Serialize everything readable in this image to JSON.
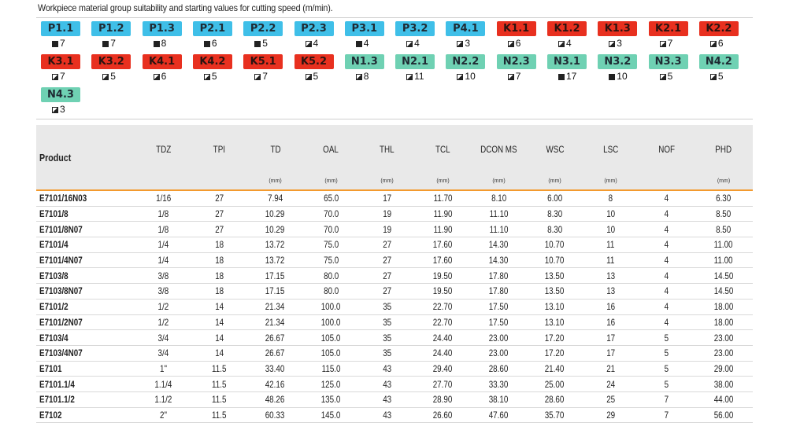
{
  "title": "Workpiece material group suitability and starting values for cutting speed (m/min).",
  "colors": {
    "blue": "#3fbfe8",
    "red": "#e8301f",
    "green": "#6fd1b3",
    "accent_line": "#f39a2e",
    "header_bg": "#e9e9e9"
  },
  "materials": [
    [
      {
        "code": "P1.1",
        "color": "blue",
        "icon": "full",
        "value": "7"
      },
      {
        "code": "P1.2",
        "color": "blue",
        "icon": "full",
        "value": "7"
      },
      {
        "code": "P1.3",
        "color": "blue",
        "icon": "full",
        "value": "8"
      },
      {
        "code": "P2.1",
        "color": "blue",
        "icon": "full",
        "value": "6"
      },
      {
        "code": "P2.2",
        "color": "blue",
        "icon": "full",
        "value": "5"
      },
      {
        "code": "P2.3",
        "color": "blue",
        "icon": "half",
        "value": "4"
      },
      {
        "code": "P3.1",
        "color": "blue",
        "icon": "full",
        "value": "4"
      },
      {
        "code": "P3.2",
        "color": "blue",
        "icon": "half",
        "value": "4"
      },
      {
        "code": "P4.1",
        "color": "blue",
        "icon": "half",
        "value": "3"
      },
      {
        "code": "K1.1",
        "color": "red",
        "icon": "half",
        "value": "6"
      },
      {
        "code": "K1.2",
        "color": "red",
        "icon": "half",
        "value": "4"
      },
      {
        "code": "K1.3",
        "color": "red",
        "icon": "half",
        "value": "3"
      },
      {
        "code": "K2.1",
        "color": "red",
        "icon": "half",
        "value": "7"
      },
      {
        "code": "K2.2",
        "color": "red",
        "icon": "half",
        "value": "6"
      }
    ],
    [
      {
        "code": "K3.1",
        "color": "red",
        "icon": "half",
        "value": "7"
      },
      {
        "code": "K3.2",
        "color": "red",
        "icon": "half",
        "value": "5"
      },
      {
        "code": "K4.1",
        "color": "red",
        "icon": "half",
        "value": "6"
      },
      {
        "code": "K4.2",
        "color": "red",
        "icon": "half",
        "value": "5"
      },
      {
        "code": "K5.1",
        "color": "red",
        "icon": "half",
        "value": "7"
      },
      {
        "code": "K5.2",
        "color": "red",
        "icon": "half",
        "value": "5"
      },
      {
        "code": "N1.3",
        "color": "green",
        "icon": "half",
        "value": "8"
      },
      {
        "code": "N2.1",
        "color": "green",
        "icon": "half",
        "value": "11"
      },
      {
        "code": "N2.2",
        "color": "green",
        "icon": "half",
        "value": "10"
      },
      {
        "code": "N2.3",
        "color": "green",
        "icon": "half",
        "value": "7"
      },
      {
        "code": "N3.1",
        "color": "green",
        "icon": "full",
        "value": "17"
      },
      {
        "code": "N3.2",
        "color": "green",
        "icon": "full",
        "value": "10"
      },
      {
        "code": "N3.3",
        "color": "green",
        "icon": "half",
        "value": "5"
      },
      {
        "code": "N4.2",
        "color": "green",
        "icon": "half",
        "value": "5"
      }
    ],
    [
      {
        "code": "N4.3",
        "color": "green",
        "icon": "half",
        "value": "3"
      }
    ]
  ],
  "table": {
    "columns": [
      {
        "label": "Product",
        "unit": ""
      },
      {
        "label": "TDZ",
        "unit": ""
      },
      {
        "label": "TPI",
        "unit": ""
      },
      {
        "label": "TD",
        "unit": "(mm)"
      },
      {
        "label": "OAL",
        "unit": "(mm)"
      },
      {
        "label": "THL",
        "unit": "(mm)"
      },
      {
        "label": "TCL",
        "unit": "(mm)"
      },
      {
        "label": "DCON MS",
        "unit": "(mm)"
      },
      {
        "label": "WSC",
        "unit": "(mm)"
      },
      {
        "label": "LSC",
        "unit": "(mm)"
      },
      {
        "label": "NOF",
        "unit": ""
      },
      {
        "label": "PHD",
        "unit": "(mm)"
      }
    ],
    "rows": [
      [
        "E7101/16N03",
        "1/16",
        "27",
        "7.94",
        "65.0",
        "17",
        "11.70",
        "8.10",
        "6.00",
        "8",
        "4",
        "6.30"
      ],
      [
        "E7101/8",
        "1/8",
        "27",
        "10.29",
        "70.0",
        "19",
        "11.90",
        "11.10",
        "8.30",
        "10",
        "4",
        "8.50"
      ],
      [
        "E7101/8N07",
        "1/8",
        "27",
        "10.29",
        "70.0",
        "19",
        "11.90",
        "11.10",
        "8.30",
        "10",
        "4",
        "8.50"
      ],
      [
        "E7101/4",
        "1/4",
        "18",
        "13.72",
        "75.0",
        "27",
        "17.60",
        "14.30",
        "10.70",
        "11",
        "4",
        "11.00"
      ],
      [
        "E7101/4N07",
        "1/4",
        "18",
        "13.72",
        "75.0",
        "27",
        "17.60",
        "14.30",
        "10.70",
        "11",
        "4",
        "11.00"
      ],
      [
        "E7103/8",
        "3/8",
        "18",
        "17.15",
        "80.0",
        "27",
        "19.50",
        "17.80",
        "13.50",
        "13",
        "4",
        "14.50"
      ],
      [
        "E7103/8N07",
        "3/8",
        "18",
        "17.15",
        "80.0",
        "27",
        "19.50",
        "17.80",
        "13.50",
        "13",
        "4",
        "14.50"
      ],
      [
        "E7101/2",
        "1/2",
        "14",
        "21.34",
        "100.0",
        "35",
        "22.70",
        "17.50",
        "13.10",
        "16",
        "4",
        "18.00"
      ],
      [
        "E7101/2N07",
        "1/2",
        "14",
        "21.34",
        "100.0",
        "35",
        "22.70",
        "17.50",
        "13.10",
        "16",
        "4",
        "18.00"
      ],
      [
        "E7103/4",
        "3/4",
        "14",
        "26.67",
        "105.0",
        "35",
        "24.40",
        "23.00",
        "17.20",
        "17",
        "5",
        "23.00"
      ],
      [
        "E7103/4N07",
        "3/4",
        "14",
        "26.67",
        "105.0",
        "35",
        "24.40",
        "23.00",
        "17.20",
        "17",
        "5",
        "23.00"
      ],
      [
        "E7101",
        "1\"",
        "11.5",
        "33.40",
        "115.0",
        "43",
        "29.40",
        "28.60",
        "21.40",
        "21",
        "5",
        "29.00"
      ],
      [
        "E7101.1/4",
        "1.1/4",
        "11.5",
        "42.16",
        "125.0",
        "43",
        "27.70",
        "33.30",
        "25.00",
        "24",
        "5",
        "38.00"
      ],
      [
        "E7101.1/2",
        "1.1/2",
        "11.5",
        "48.26",
        "135.0",
        "43",
        "28.90",
        "38.10",
        "28.60",
        "25",
        "7",
        "44.00"
      ],
      [
        "E7102",
        "2\"",
        "11.5",
        "60.33",
        "145.0",
        "43",
        "26.60",
        "47.60",
        "35.70",
        "29",
        "7",
        "56.00"
      ]
    ]
  }
}
